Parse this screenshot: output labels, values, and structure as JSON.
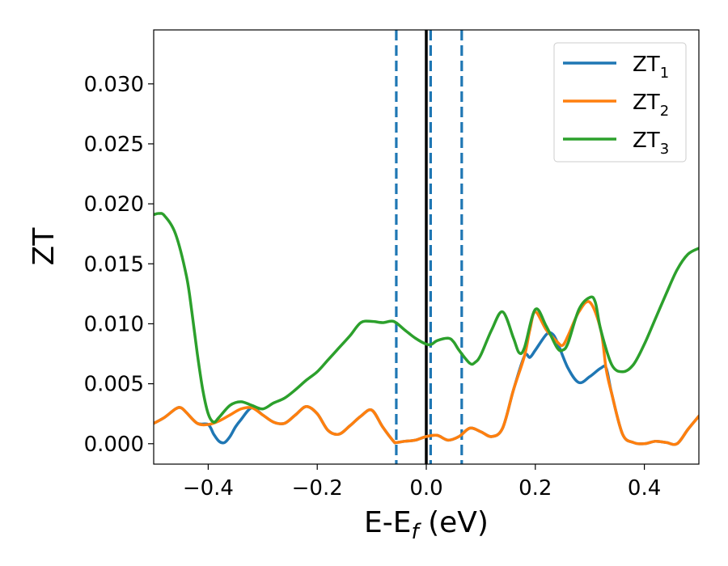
{
  "chart_data": {
    "type": "line",
    "xlabel_main": "E-E",
    "xlabel_sub": "f",
    "xlabel_unit": " (eV)",
    "ylabel": "ZT",
    "xlim": [
      -0.5,
      0.5
    ],
    "ylim": [
      -0.0017,
      0.0345
    ],
    "xticks": [
      -0.4,
      -0.2,
      0.0,
      0.2,
      0.4
    ],
    "xtick_labels": [
      "−0.4",
      "−0.2",
      "0.0",
      "0.2",
      "0.4"
    ],
    "yticks": [
      0.0,
      0.005,
      0.01,
      0.015,
      0.02,
      0.025,
      0.03
    ],
    "ytick_labels": [
      "0.000",
      "0.005",
      "0.010",
      "0.015",
      "0.020",
      "0.025",
      "0.030"
    ],
    "grid": false,
    "legend_position": "top-right",
    "vlines": [
      {
        "x": -0.055,
        "style": "dashed",
        "color": "#1f77b4"
      },
      {
        "x": 0.008,
        "style": "dashed",
        "color": "#1f77b4"
      },
      {
        "x": 0.065,
        "style": "dashed",
        "color": "#1f77b4"
      },
      {
        "x": 0.0,
        "style": "solid",
        "color": "#000000"
      }
    ],
    "series": [
      {
        "name_main": "ZT",
        "name_sub": "1",
        "color": "#1f77b4",
        "x": [
          -0.5,
          -0.48,
          -0.46,
          -0.45,
          -0.44,
          -0.42,
          -0.4,
          -0.39,
          -0.38,
          -0.37,
          -0.36,
          -0.35,
          -0.34,
          -0.32,
          -0.3,
          -0.28,
          -0.26,
          -0.24,
          -0.22,
          -0.2,
          -0.18,
          -0.16,
          -0.14,
          -0.12,
          -0.1,
          -0.08,
          -0.06,
          -0.055,
          -0.04,
          -0.02,
          0.0,
          0.02,
          0.04,
          0.06,
          0.08,
          0.1,
          0.12,
          0.14,
          0.16,
          0.18,
          0.19,
          0.2,
          0.22,
          0.23,
          0.24,
          0.26,
          0.28,
          0.3,
          0.32,
          0.33,
          0.34,
          0.36,
          0.38,
          0.4,
          0.42,
          0.44,
          0.46,
          0.48,
          0.5
        ],
        "y": [
          0.0017,
          0.0022,
          0.0029,
          0.003,
          0.0026,
          0.0017,
          0.0016,
          0.0008,
          0.0002,
          0.0001,
          0.0006,
          0.0014,
          0.002,
          0.003,
          0.0024,
          0.0018,
          0.0017,
          0.0024,
          0.0031,
          0.0025,
          0.0011,
          0.0008,
          0.0015,
          0.0023,
          0.0028,
          0.0014,
          0.0002,
          0.0001,
          0.0002,
          0.0003,
          0.0006,
          0.0007,
          0.0003,
          0.0006,
          0.0013,
          0.001,
          0.0006,
          0.0013,
          0.0045,
          0.0073,
          0.0072,
          0.0078,
          0.0091,
          0.0092,
          0.0085,
          0.0063,
          0.0051,
          0.0056,
          0.0063,
          0.0063,
          0.0042,
          0.0008,
          0.0001,
          0.0,
          0.0002,
          0.0001,
          0.0,
          0.0012,
          0.0023
        ]
      },
      {
        "name_main": "ZT",
        "name_sub": "2",
        "color": "#ff7f0e",
        "x": [
          -0.5,
          -0.48,
          -0.46,
          -0.45,
          -0.44,
          -0.42,
          -0.4,
          -0.38,
          -0.36,
          -0.34,
          -0.32,
          -0.3,
          -0.28,
          -0.26,
          -0.24,
          -0.22,
          -0.2,
          -0.18,
          -0.16,
          -0.14,
          -0.12,
          -0.1,
          -0.08,
          -0.06,
          -0.055,
          -0.04,
          -0.02,
          0.0,
          0.02,
          0.04,
          0.06,
          0.08,
          0.1,
          0.12,
          0.14,
          0.16,
          0.18,
          0.19,
          0.2,
          0.22,
          0.24,
          0.25,
          0.26,
          0.28,
          0.3,
          0.32,
          0.33,
          0.34,
          0.36,
          0.38,
          0.4,
          0.42,
          0.44,
          0.46,
          0.48,
          0.5
        ],
        "y": [
          0.0017,
          0.0022,
          0.0029,
          0.003,
          0.0026,
          0.0017,
          0.0016,
          0.0019,
          0.0024,
          0.0029,
          0.003,
          0.0024,
          0.0018,
          0.0017,
          0.0024,
          0.0031,
          0.0025,
          0.0011,
          0.0008,
          0.0015,
          0.0023,
          0.0028,
          0.0014,
          0.0002,
          0.0001,
          0.0002,
          0.0003,
          0.0006,
          0.0007,
          0.0003,
          0.0006,
          0.0013,
          0.001,
          0.0006,
          0.0013,
          0.0045,
          0.0073,
          0.0095,
          0.011,
          0.0095,
          0.0085,
          0.0082,
          0.009,
          0.011,
          0.0118,
          0.0095,
          0.0062,
          0.0042,
          0.0008,
          0.0001,
          0.0,
          0.0002,
          0.0001,
          0.0,
          0.0012,
          0.0023
        ]
      },
      {
        "name_main": "ZT",
        "name_sub": "3",
        "color": "#2ca02c",
        "x": [
          -0.5,
          -0.49,
          -0.48,
          -0.46,
          -0.44,
          -0.43,
          -0.42,
          -0.41,
          -0.4,
          -0.39,
          -0.38,
          -0.36,
          -0.34,
          -0.32,
          -0.3,
          -0.28,
          -0.26,
          -0.24,
          -0.22,
          -0.2,
          -0.18,
          -0.16,
          -0.14,
          -0.12,
          -0.1,
          -0.08,
          -0.06,
          -0.04,
          -0.02,
          0.0,
          0.01,
          0.02,
          0.04,
          0.05,
          0.06,
          0.08,
          0.09,
          0.1,
          0.12,
          0.14,
          0.16,
          0.17,
          0.18,
          0.2,
          0.22,
          0.24,
          0.25,
          0.26,
          0.28,
          0.3,
          0.31,
          0.32,
          0.34,
          0.36,
          0.38,
          0.4,
          0.42,
          0.44,
          0.46,
          0.48,
          0.5
        ],
        "y": [
          0.0191,
          0.0192,
          0.019,
          0.0175,
          0.014,
          0.011,
          0.0075,
          0.0045,
          0.0025,
          0.0018,
          0.0022,
          0.0032,
          0.0035,
          0.0032,
          0.0029,
          0.0034,
          0.0038,
          0.0045,
          0.0053,
          0.006,
          0.007,
          0.008,
          0.009,
          0.0101,
          0.0102,
          0.0101,
          0.0102,
          0.0095,
          0.0088,
          0.0083,
          0.0083,
          0.0086,
          0.0088,
          0.0085,
          0.0078,
          0.0067,
          0.0068,
          0.0074,
          0.0095,
          0.011,
          0.0088,
          0.0076,
          0.008,
          0.0112,
          0.0098,
          0.008,
          0.0078,
          0.0084,
          0.0112,
          0.0122,
          0.0118,
          0.0095,
          0.0066,
          0.006,
          0.0066,
          0.0083,
          0.0104,
          0.0125,
          0.0145,
          0.0158,
          0.0163
        ]
      }
    ]
  }
}
